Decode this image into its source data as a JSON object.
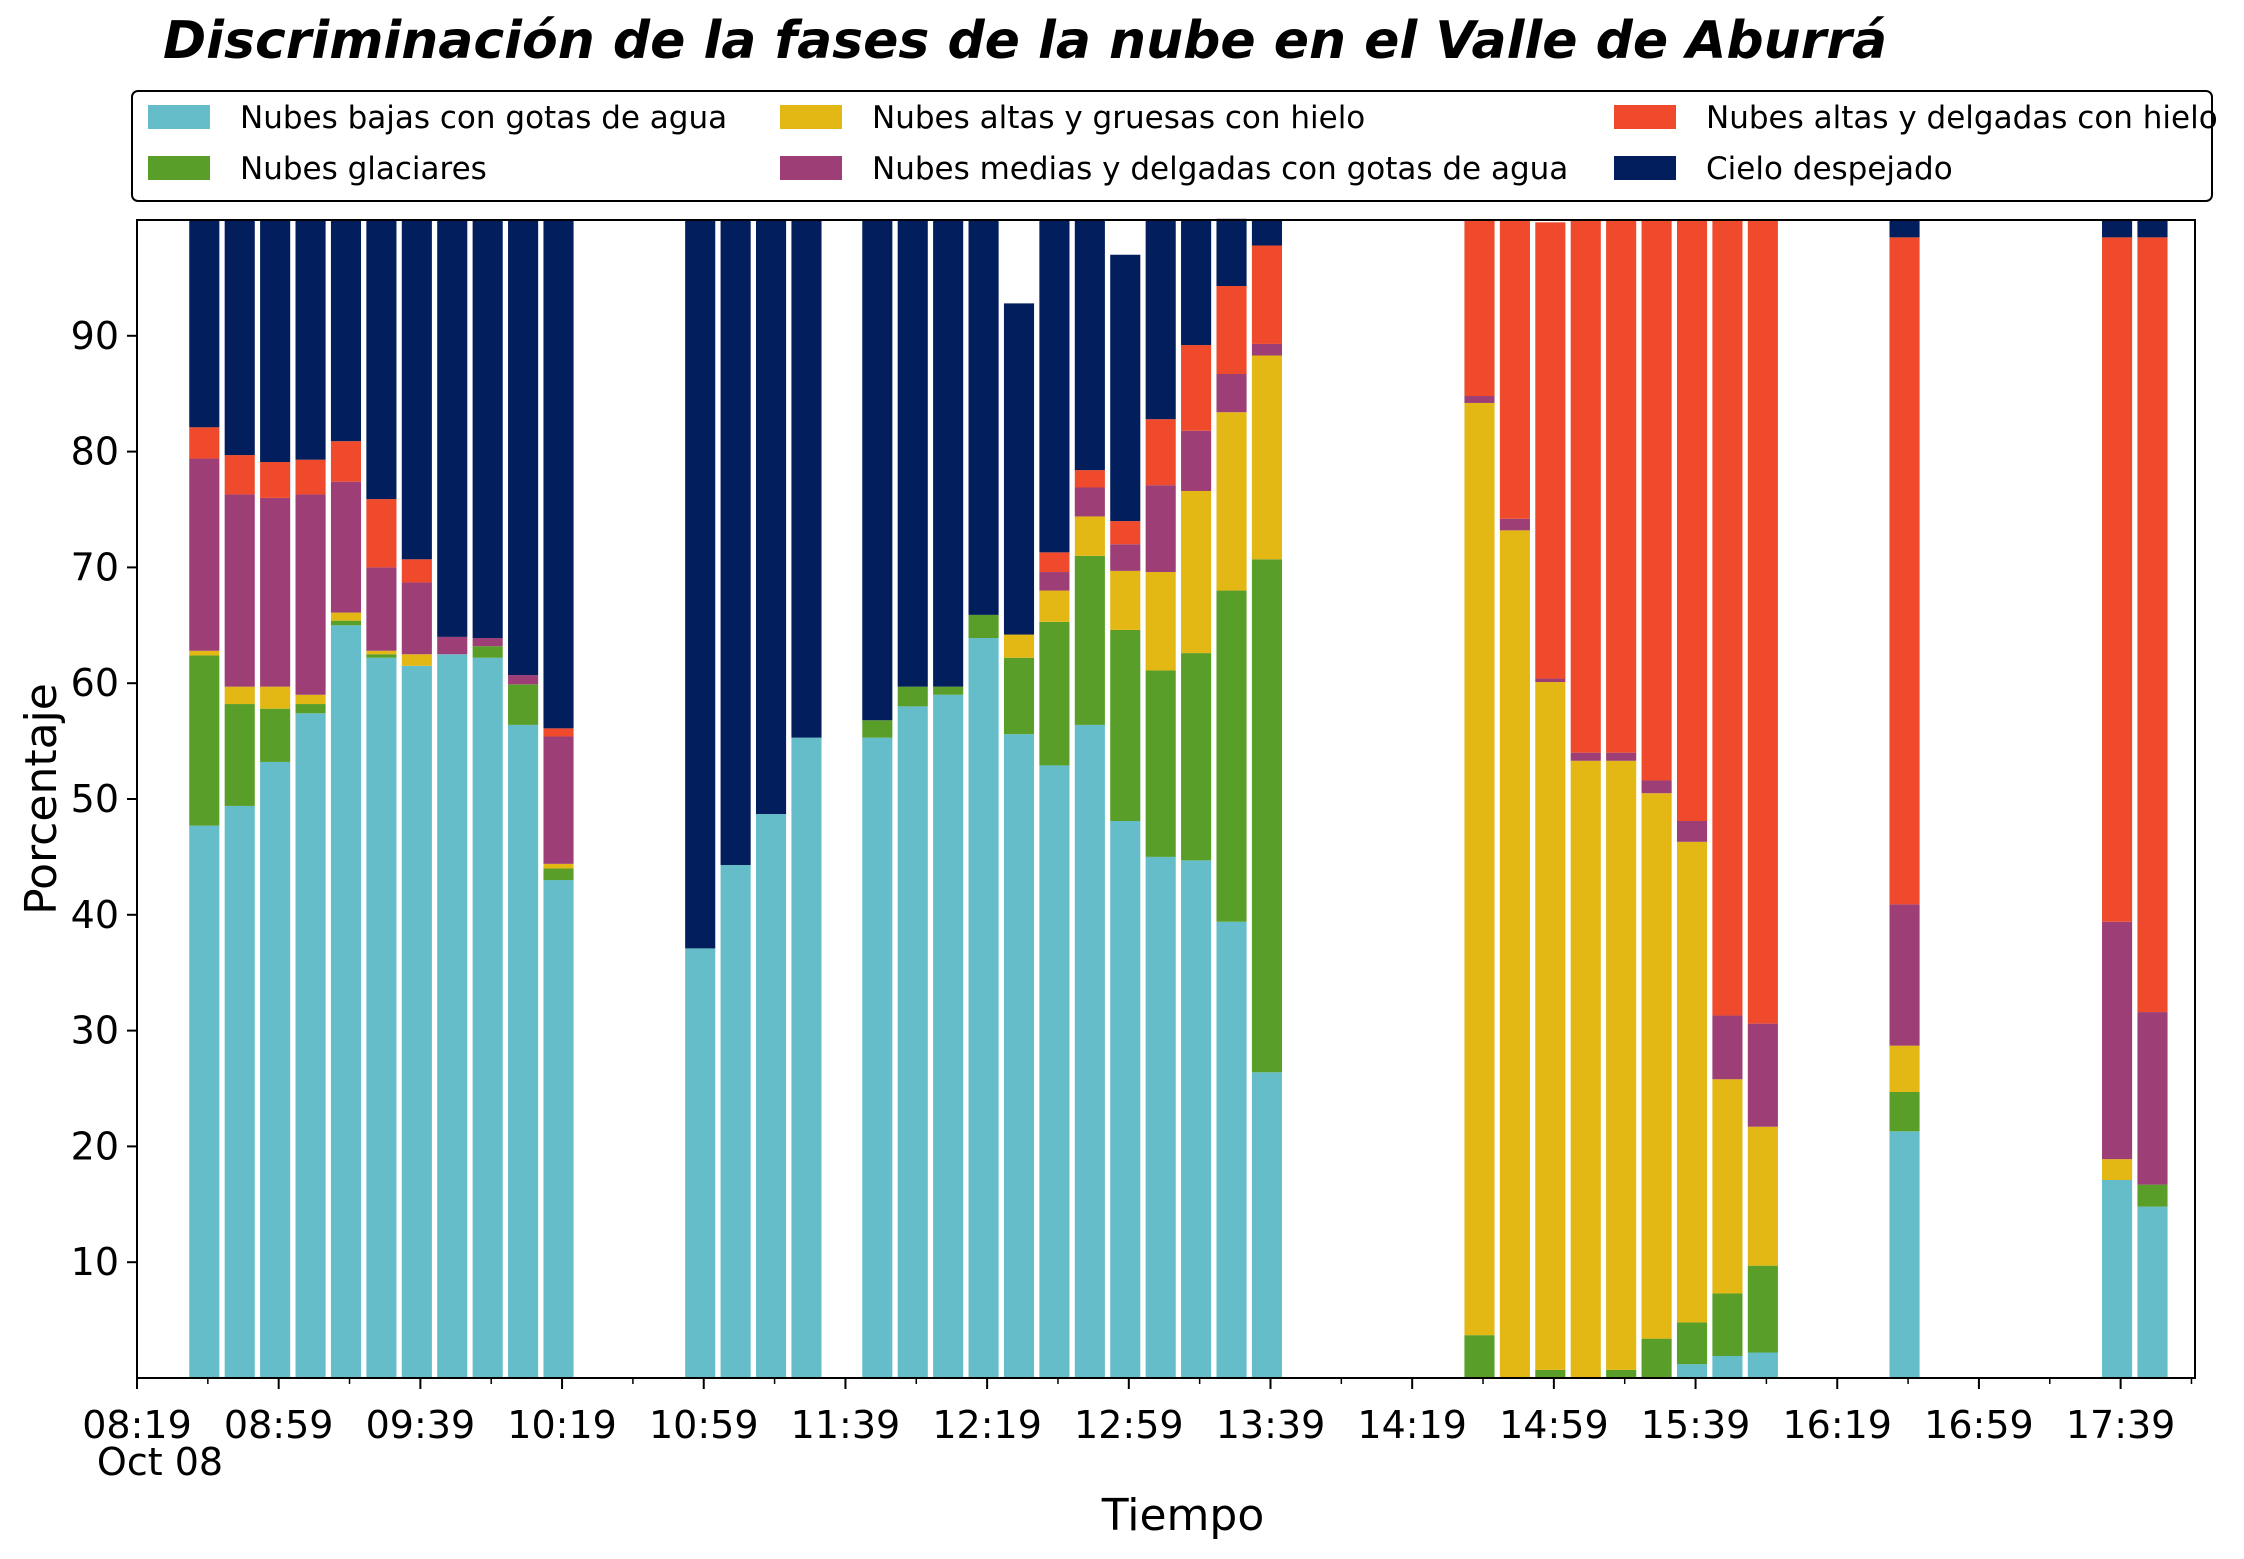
{
  "chart_data": {
    "type": "bar",
    "stacked": true,
    "title": "Discriminación de la fases de la nube en el Valle de Aburrá",
    "xlabel": "Tiempo",
    "ylabel": "Porcentaje",
    "ylim": [
      0,
      100
    ],
    "yticks": [
      10,
      20,
      30,
      40,
      50,
      60,
      70,
      80,
      90
    ],
    "x_date_label": "Oct 08",
    "x_range": [
      "08:19",
      "18:00"
    ],
    "x_ticks": [
      "08:19",
      "08:59",
      "09:39",
      "10:19",
      "10:59",
      "11:39",
      "12:19",
      "12:59",
      "13:39",
      "14:19",
      "14:59",
      "15:39",
      "16:19",
      "16:59",
      "17:39"
    ],
    "bar_width_minutes": 8.5,
    "grid": false,
    "legend_position": "top, above plot",
    "categories": [
      "08:38",
      "08:48",
      "08:58",
      "09:08",
      "09:18",
      "09:28",
      "09:38",
      "09:48",
      "09:58",
      "10:08",
      "10:18",
      "10:58",
      "11:08",
      "11:18",
      "11:28",
      "11:48",
      "11:58",
      "12:08",
      "12:18",
      "12:28",
      "12:38",
      "12:48",
      "12:58",
      "13:08",
      "13:18",
      "13:28",
      "13:38",
      "14:38",
      "14:48",
      "14:58",
      "15:08",
      "15:18",
      "15:28",
      "15:38",
      "15:48",
      "15:58",
      "16:08",
      "16:38",
      "17:38",
      "17:48"
    ],
    "series": [
      {
        "name": "Nubes bajas con gotas de agua",
        "color": "#64BDC8",
        "values": [
          47.7,
          49.4,
          53.2,
          57.4,
          65.0,
          62.2,
          61.5,
          62.5,
          62.2,
          56.4,
          43.0,
          37.1,
          44.3,
          48.7,
          55.3,
          55.3,
          58.0,
          59.0,
          63.9,
          55.6,
          52.9,
          56.4,
          48.1,
          45.0,
          44.7,
          39.4,
          26.4,
          0,
          0,
          0,
          0,
          0,
          0,
          1.2,
          1.9,
          2.2,
          0,
          21.3,
          17.1,
          14.8
        ]
      },
      {
        "name": "Nubes glaciares",
        "color": "#5A9E2A",
        "values": [
          14.7,
          8.8,
          4.6,
          0.8,
          0.4,
          0.3,
          0,
          0,
          1.0,
          3.5,
          1.0,
          0,
          0,
          0,
          0,
          1.5,
          1.7,
          0.7,
          2.0,
          6.6,
          12.4,
          14.6,
          16.5,
          16.1,
          17.9,
          28.6,
          44.3,
          3.7,
          0,
          0.7,
          0,
          0.7,
          3.4,
          3.6,
          5.4,
          7.5,
          0,
          3.4,
          0,
          1.9
        ]
      },
      {
        "name": "Nubes altas y gruesas con hielo",
        "color": "#E3B714",
        "values": [
          0.4,
          1.5,
          1.9,
          0.8,
          0.7,
          0.3,
          1.0,
          0,
          0,
          0,
          0.4,
          0,
          0,
          0,
          0,
          0,
          0,
          0,
          0,
          2.0,
          2.7,
          3.4,
          5.1,
          8.5,
          14.0,
          15.4,
          17.6,
          80.5,
          73.2,
          59.4,
          53.3,
          52.6,
          47.1,
          41.5,
          18.5,
          12.0,
          0,
          4.0,
          1.8,
          0
        ]
      },
      {
        "name": "Nubes medias y delgadas con gotas de agua",
        "color": "#9D3F76",
        "values": [
          16.6,
          16.6,
          16.3,
          17.3,
          11.3,
          7.2,
          6.2,
          1.5,
          0.7,
          0.8,
          11.0,
          0,
          0,
          0,
          0,
          0,
          0,
          0,
          0,
          0,
          1.6,
          2.5,
          2.3,
          7.5,
          5.2,
          3.3,
          1.0,
          0.6,
          1.0,
          0.3,
          0.7,
          0.7,
          1.1,
          1.8,
          5.5,
          8.9,
          0,
          12.2,
          20.5,
          14.9
        ]
      },
      {
        "name": "Nubes altas y delgadas con hielo",
        "color": "#EF4A2C",
        "values": [
          2.7,
          3.4,
          3.1,
          3.0,
          3.5,
          5.9,
          2.0,
          0,
          0,
          0,
          0.7,
          0,
          0,
          0,
          0,
          0,
          0,
          0,
          0,
          0,
          1.7,
          1.5,
          2.0,
          5.7,
          7.4,
          7.6,
          8.5,
          15.2,
          25.8,
          39.4,
          46.0,
          46.0,
          48.4,
          51.9,
          68.7,
          69.4,
          0,
          57.6,
          59.1,
          66.9
        ]
      },
      {
        "name": "Cielo despejado",
        "color": "#031E5C",
        "values": [
          17.9,
          20.3,
          20.9,
          20.7,
          19.1,
          24.1,
          29.3,
          36.0,
          36.1,
          39.3,
          43.9,
          62.9,
          55.7,
          51.3,
          44.7,
          43.2,
          40.3,
          40.3,
          34.1,
          28.6,
          28.7,
          21.6,
          23.0,
          17.2,
          10.8,
          5.8,
          2.2,
          0,
          0,
          0,
          0,
          0,
          0,
          0,
          0,
          0,
          0,
          1.5,
          1.5,
          1.5
        ]
      }
    ]
  }
}
